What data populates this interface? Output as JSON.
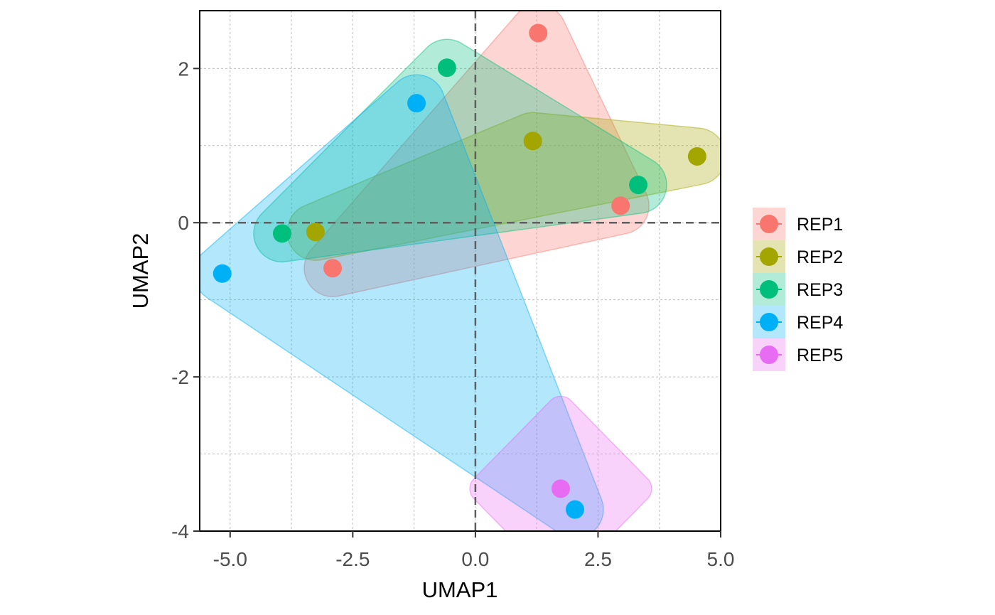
{
  "chart_data": {
    "type": "scatter",
    "title": "",
    "xlabel": "UMAP1",
    "ylabel": "UMAP2",
    "xlim": [
      -5.62,
      5.0
    ],
    "ylim": [
      -4.0,
      2.75
    ],
    "x_ticks": [
      -5.0,
      -2.5,
      0.0,
      2.5,
      5.0
    ],
    "x_tick_labels": [
      "-5.0",
      "-2.5",
      "0.0",
      "2.5",
      "5.0"
    ],
    "y_ticks": [
      2,
      0,
      -2,
      -4
    ],
    "y_tick_labels": [
      "2",
      "0",
      "-2",
      "-4"
    ],
    "grid": true,
    "reference_lines": {
      "x": 0,
      "y": 0,
      "style": "dashed"
    },
    "legend_position": "right",
    "hulls": "expanded convex hull (ellipse-like) per group, semi-transparent",
    "series": [
      {
        "name": "REP1",
        "color": "#F8766D",
        "points": [
          [
            1.28,
            2.46
          ],
          [
            2.96,
            0.22
          ],
          [
            -2.91,
            -0.59
          ]
        ]
      },
      {
        "name": "REP2",
        "color": "#A3A500",
        "points": [
          [
            1.17,
            1.06
          ],
          [
            4.52,
            0.86
          ],
          [
            -3.26,
            -0.12
          ]
        ]
      },
      {
        "name": "REP3",
        "color": "#00BF7D",
        "points": [
          [
            -0.58,
            2.01
          ],
          [
            3.32,
            0.49
          ],
          [
            -3.94,
            -0.14
          ]
        ]
      },
      {
        "name": "REP4",
        "color": "#00B0F6",
        "points": [
          [
            -1.2,
            1.55
          ],
          [
            -5.16,
            -0.66
          ],
          [
            2.03,
            -3.72
          ]
        ]
      },
      {
        "name": "REP5",
        "color": "#E76BF3",
        "points": [
          [
            1.74,
            -3.45
          ]
        ]
      }
    ]
  }
}
